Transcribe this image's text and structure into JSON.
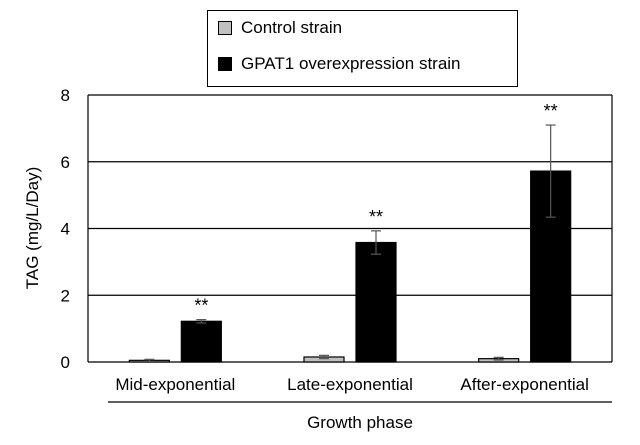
{
  "chart_data": {
    "type": "bar",
    "title": "",
    "xlabel": "Growth phase",
    "ylabel": "TAG (mg/L/Day)",
    "ylim": [
      0,
      8
    ],
    "yticks": [
      0,
      2,
      4,
      6,
      8
    ],
    "grid": true,
    "legend_position": "top",
    "categories": [
      "Mid-exponential",
      "Late-exponential",
      "After-exponential"
    ],
    "series": [
      {
        "name": "Control strain",
        "color": "#c0c0c0",
        "values": [
          0.05,
          0.15,
          0.1
        ],
        "errors": [
          0.03,
          0.05,
          0.04
        ]
      },
      {
        "name": "GPAT1 overexpression strain",
        "color": "#000000",
        "values": [
          1.22,
          3.58,
          5.72
        ],
        "errors": [
          0.05,
          0.35,
          1.38
        ]
      }
    ],
    "annotations": [
      "**",
      "**",
      "**"
    ]
  }
}
